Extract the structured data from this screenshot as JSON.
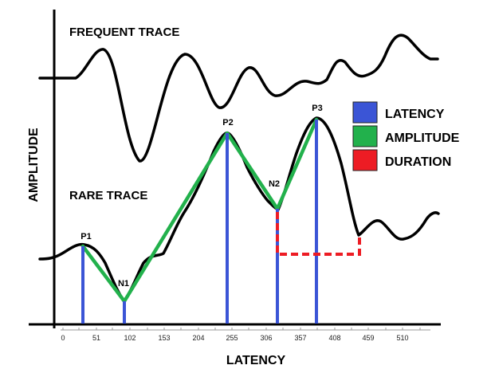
{
  "texts": {
    "frequent": "FREQUENT TRACE",
    "rare": "RARE TRACE",
    "ylabel": "AMPLITUDE",
    "xlabel": "LATENCY"
  },
  "peaks": {
    "p1": "P1",
    "n1": "N1",
    "p2": "P2",
    "n2": "N2",
    "p3": "P3"
  },
  "ticks": [
    "0",
    "51",
    "102",
    "153",
    "204",
    "255",
    "306",
    "357",
    "408",
    "459",
    "510"
  ],
  "legend": [
    {
      "label": "LATENCY",
      "color": "#3b55d6"
    },
    {
      "label": "AMPLITUDE",
      "color": "#22b14c"
    },
    {
      "label": "DURATION",
      "color": "#ed1c24"
    }
  ]
}
